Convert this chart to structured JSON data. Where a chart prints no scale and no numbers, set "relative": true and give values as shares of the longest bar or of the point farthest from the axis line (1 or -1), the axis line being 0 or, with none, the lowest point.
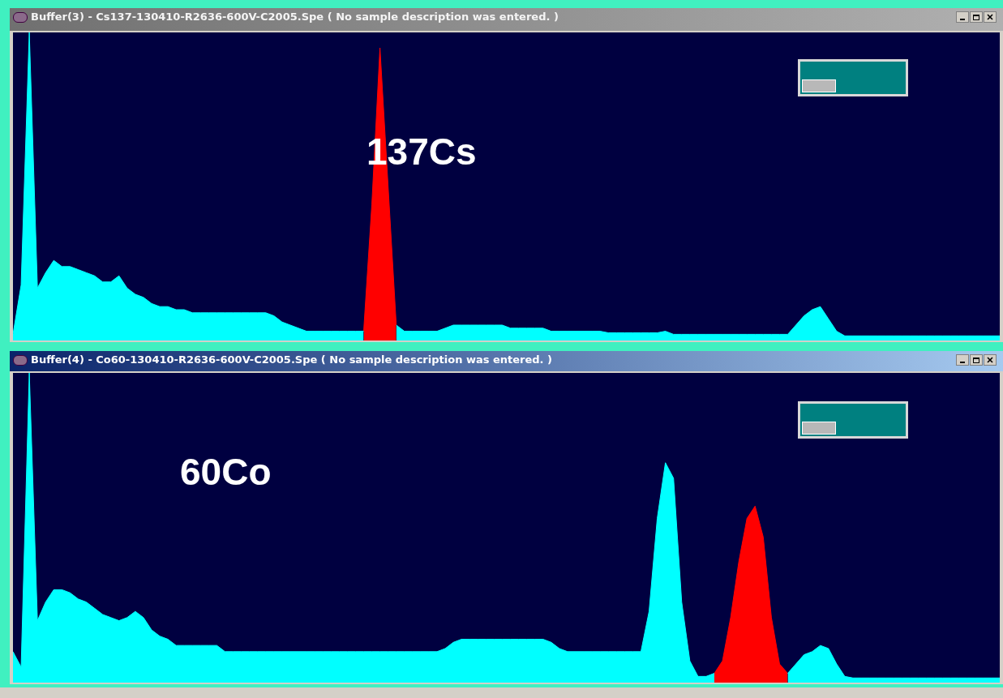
{
  "chart_data": [
    {
      "type": "area",
      "title": "Buffer(3) - Cs137-130410-R2636-600V-C2005.Spe ( No sample description was entered. )",
      "relative": true,
      "annotations": [
        "137Cs"
      ],
      "categories": [
        null,
        null,
        null,
        null,
        null,
        null,
        null,
        null,
        null,
        null,
        null,
        null,
        null,
        null,
        null,
        null,
        null,
        null,
        null,
        null,
        null,
        null,
        null,
        null,
        null,
        null,
        null,
        null,
        null,
        null,
        null,
        null,
        null,
        null,
        null,
        null,
        null,
        null,
        null,
        null,
        null,
        null,
        null,
        null,
        null,
        null,
        null,
        null,
        null,
        null,
        null,
        null,
        null,
        null,
        null,
        null,
        null,
        null,
        null,
        null,
        null,
        null,
        null,
        null,
        null,
        null,
        null,
        null,
        null,
        null,
        null,
        null,
        null,
        null,
        null,
        null,
        null,
        null,
        null,
        null,
        null,
        null,
        null,
        null,
        null,
        null,
        null,
        null,
        null,
        null,
        null,
        null,
        null,
        null,
        null,
        null,
        null,
        null,
        null,
        null,
        null,
        null,
        null,
        null,
        null,
        null,
        null,
        null,
        null,
        null,
        null,
        null,
        null,
        null,
        null,
        null,
        null,
        null,
        null,
        null,
        null,
        null
      ],
      "series": [
        {
          "color": "#00ffff",
          "values": [
            0.02,
            0.18,
            1,
            0.17,
            0.22,
            0.26,
            0.24,
            0.24,
            0.23,
            0.22,
            0.21,
            0.19,
            0.19,
            0.21,
            0.17,
            0.15,
            0.14,
            0.12,
            0.11,
            0.11,
            0.1,
            0.1,
            0.09,
            0.09,
            0.09,
            0.09,
            0.09,
            0.09,
            0.09,
            0.09,
            0.09,
            0.09,
            0.08,
            0.06,
            0.05,
            0.04,
            0.03,
            0.03,
            0.03,
            0.03,
            0.03,
            0.03,
            0.03,
            0.03,
            null,
            null,
            null,
            0.05,
            0.03,
            0.03,
            0.03,
            0.03,
            0.03,
            0.04,
            0.05,
            0.05,
            0.05,
            0.05,
            0.05,
            0.05,
            0.05,
            0.04,
            0.04,
            0.04,
            0.04,
            0.04,
            0.03,
            0.03,
            0.03,
            0.03,
            0.03,
            0.03,
            0.03,
            0.025,
            0.025,
            0.025,
            0.025,
            0.025,
            0.025,
            0.025,
            0.03,
            0.02,
            0.02,
            0.02,
            0.02,
            0.02,
            0.02,
            0.02,
            0.02,
            0.02,
            0.02,
            0.02,
            0.02,
            0.02,
            0.02,
            0.02,
            0.05,
            0.08,
            0.1,
            0.11,
            0.07,
            0.03,
            0.015,
            0.015,
            0.015,
            0.015,
            0.015,
            0.015,
            0.015,
            0.015,
            0.015,
            0.015,
            0.015,
            0.015,
            0.015,
            0.015,
            0.015,
            0.015,
            0.015,
            0.015,
            0.015,
            0.015
          ]
        },
        {
          "color": "#ff0000",
          "values": [
            null,
            null,
            null,
            null,
            null,
            null,
            null,
            null,
            null,
            null,
            null,
            null,
            null,
            null,
            null,
            null,
            null,
            null,
            null,
            null,
            null,
            null,
            null,
            null,
            null,
            null,
            null,
            null,
            null,
            null,
            null,
            null,
            null,
            null,
            null,
            null,
            null,
            null,
            null,
            null,
            null,
            null,
            null,
            0.03,
            0.44,
            0.95,
            0.5,
            0.05,
            null,
            null,
            null,
            null,
            null,
            null,
            null,
            null,
            null,
            null,
            null,
            null,
            null,
            null,
            null,
            null,
            null,
            null,
            null,
            null,
            null,
            null,
            null,
            null,
            null,
            null,
            null,
            null,
            null,
            null,
            null,
            null,
            null,
            null,
            null,
            null,
            null,
            null,
            null,
            null,
            null,
            null,
            null,
            null,
            null,
            null,
            null,
            null,
            null,
            null,
            null,
            null,
            null,
            null,
            null,
            null,
            null,
            null,
            null,
            null,
            null,
            null,
            null,
            null,
            null,
            null,
            null,
            null,
            null,
            null,
            null,
            null,
            null,
            null
          ]
        }
      ]
    },
    {
      "type": "area",
      "title": "Buffer(4) - Co60-130410-R2636-600V-C2005.Spe ( No sample description was entered. )",
      "relative": true,
      "annotations": [
        "60Co"
      ],
      "categories": [
        null,
        null,
        null,
        null,
        null,
        null,
        null,
        null,
        null,
        null,
        null,
        null,
        null,
        null,
        null,
        null,
        null,
        null,
        null,
        null,
        null,
        null,
        null,
        null,
        null,
        null,
        null,
        null,
        null,
        null,
        null,
        null,
        null,
        null,
        null,
        null,
        null,
        null,
        null,
        null,
        null,
        null,
        null,
        null,
        null,
        null,
        null,
        null,
        null,
        null,
        null,
        null,
        null,
        null,
        null,
        null,
        null,
        null,
        null,
        null,
        null,
        null,
        null,
        null,
        null,
        null,
        null,
        null,
        null,
        null,
        null,
        null,
        null,
        null,
        null,
        null,
        null,
        null,
        null,
        null,
        null,
        null,
        null,
        null,
        null,
        null,
        null,
        null,
        null,
        null,
        null,
        null,
        null,
        null,
        null,
        null,
        null,
        null,
        null,
        null,
        null,
        null,
        null,
        null,
        null,
        null,
        null,
        null,
        null,
        null,
        null,
        null,
        null,
        null,
        null,
        null,
        null,
        null,
        null,
        null,
        null,
        null
      ],
      "series": [
        {
          "color": "#00ffff",
          "values": [
            0.1,
            0.05,
            1,
            0.2,
            0.26,
            0.3,
            0.3,
            0.29,
            0.27,
            0.26,
            0.24,
            0.22,
            0.21,
            0.2,
            0.21,
            0.23,
            0.21,
            0.17,
            0.15,
            0.14,
            0.12,
            0.12,
            0.12,
            0.12,
            0.12,
            0.12,
            0.1,
            0.1,
            0.1,
            0.1,
            0.1,
            0.1,
            0.1,
            0.1,
            0.1,
            0.1,
            0.1,
            0.1,
            0.1,
            0.1,
            0.1,
            0.1,
            0.1,
            0.1,
            0.1,
            0.1,
            0.1,
            0.1,
            0.1,
            0.1,
            0.1,
            0.1,
            0.1,
            0.11,
            0.13,
            0.14,
            0.14,
            0.14,
            0.14,
            0.14,
            0.14,
            0.14,
            0.14,
            0.14,
            0.14,
            0.14,
            0.13,
            0.11,
            0.1,
            0.1,
            0.1,
            0.1,
            0.1,
            0.1,
            0.1,
            0.1,
            0.1,
            0.1,
            0.23,
            0.53,
            0.71,
            0.66,
            0.26,
            0.07,
            0.02,
            0.02,
            0.03,
            null,
            null,
            null,
            null,
            null,
            null,
            null,
            null,
            0.03,
            0.06,
            0.09,
            0.1,
            0.12,
            0.11,
            0.06,
            0.02,
            0.015,
            0.015,
            0.015,
            0.015,
            0.015,
            0.015,
            0.015,
            0.015,
            0.015,
            0.015,
            0.015,
            0.015,
            0.015,
            0.015,
            0.015,
            0.015,
            0.015,
            0.015,
            0.015
          ]
        },
        {
          "color": "#ff0000",
          "values": [
            null,
            null,
            null,
            null,
            null,
            null,
            null,
            null,
            null,
            null,
            null,
            null,
            null,
            null,
            null,
            null,
            null,
            null,
            null,
            null,
            null,
            null,
            null,
            null,
            null,
            null,
            null,
            null,
            null,
            null,
            null,
            null,
            null,
            null,
            null,
            null,
            null,
            null,
            null,
            null,
            null,
            null,
            null,
            null,
            null,
            null,
            null,
            null,
            null,
            null,
            null,
            null,
            null,
            null,
            null,
            null,
            null,
            null,
            null,
            null,
            null,
            null,
            null,
            null,
            null,
            null,
            null,
            null,
            null,
            null,
            null,
            null,
            null,
            null,
            null,
            null,
            null,
            null,
            null,
            null,
            null,
            null,
            null,
            null,
            null,
            null,
            0.03,
            0.07,
            0.21,
            0.39,
            0.53,
            0.57,
            0.47,
            0.21,
            0.06,
            0.03,
            null,
            null,
            null,
            null,
            null,
            null,
            null,
            null,
            null,
            null,
            null,
            null,
            null,
            null,
            null,
            null,
            null,
            null,
            null,
            null,
            null,
            null,
            null,
            null,
            null,
            null
          ]
        }
      ]
    }
  ]
}
